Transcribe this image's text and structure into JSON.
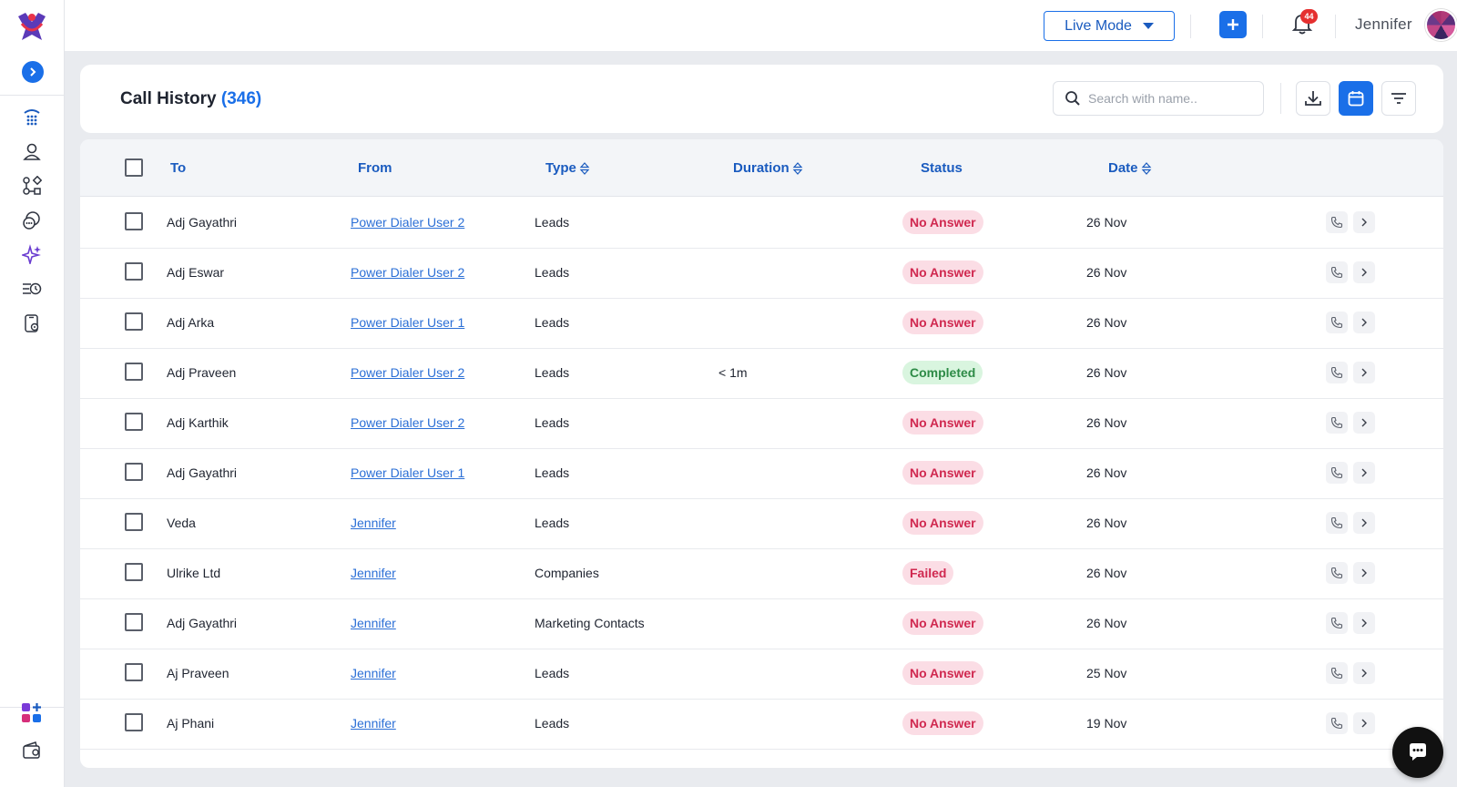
{
  "topbar": {
    "mode_label": "Live Mode",
    "notification_count": "44",
    "user_name": "Jennifer"
  },
  "header": {
    "title": "Call History",
    "count": "(346)",
    "search_placeholder": "Search with name.."
  },
  "table": {
    "columns": {
      "to": "To",
      "from": "From",
      "type": "Type",
      "duration": "Duration",
      "status": "Status",
      "date": "Date"
    },
    "rows": [
      {
        "to": "Adj Gayathri",
        "from": "Power Dialer User 2",
        "type": "Leads",
        "duration": "",
        "status": "No Answer",
        "date": "26 Nov"
      },
      {
        "to": "Adj Eswar",
        "from": "Power Dialer User 2",
        "type": "Leads",
        "duration": "",
        "status": "No Answer",
        "date": "26 Nov"
      },
      {
        "to": "Adj Arka",
        "from": "Power Dialer User 1",
        "type": "Leads",
        "duration": "",
        "status": "No Answer",
        "date": "26 Nov"
      },
      {
        "to": "Adj Praveen",
        "from": "Power Dialer User 2",
        "type": "Leads",
        "duration": "< 1m",
        "status": "Completed",
        "date": "26 Nov"
      },
      {
        "to": "Adj Karthik",
        "from": "Power Dialer User 2",
        "type": "Leads",
        "duration": "",
        "status": "No Answer",
        "date": "26 Nov"
      },
      {
        "to": "Adj Gayathri",
        "from": "Power Dialer User 1",
        "type": "Leads",
        "duration": "",
        "status": "No Answer",
        "date": "26 Nov"
      },
      {
        "to": "Veda",
        "from": "Jennifer",
        "type": "Leads",
        "duration": "",
        "status": "No Answer",
        "date": "26 Nov"
      },
      {
        "to": "Ulrike Ltd",
        "from": "Jennifer",
        "type": "Companies",
        "duration": "",
        "status": "Failed",
        "date": "26 Nov"
      },
      {
        "to": "Adj Gayathri",
        "from": "Jennifer",
        "type": "Marketing Contacts",
        "duration": "",
        "status": "No Answer",
        "date": "26 Nov"
      },
      {
        "to": "Aj Praveen",
        "from": "Jennifer",
        "type": "Leads",
        "duration": "",
        "status": "No Answer",
        "date": "25 Nov"
      },
      {
        "to": "Aj Phani",
        "from": "Jennifer",
        "type": "Leads",
        "duration": "",
        "status": "No Answer",
        "date": "19 Nov"
      }
    ]
  },
  "colors": {
    "accent": "#1a6fe8",
    "no_answer_bg": "#fbdde5",
    "no_answer_text": "#d02950",
    "completed_bg": "#d9f5df",
    "completed_text": "#2e8b47"
  },
  "icons": {
    "sidebar": [
      "dialpad-icon",
      "contact-icon",
      "workflow-icon",
      "chat-bubbles-icon",
      "ai-sparkle-icon",
      "call-history-icon",
      "phone-settings-icon"
    ],
    "sidebar_bottom": [
      "apps-add-icon",
      "wallet-icon"
    ]
  }
}
